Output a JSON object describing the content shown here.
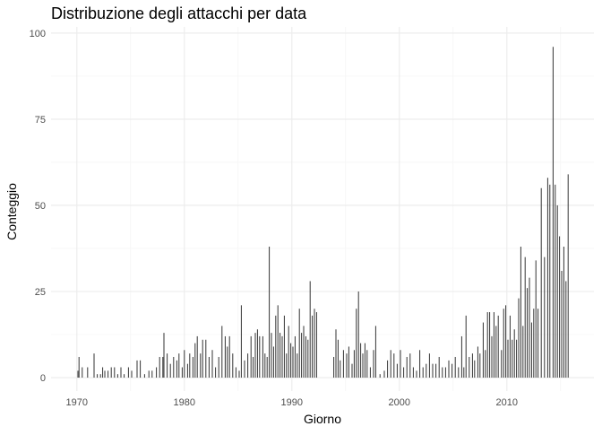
{
  "chart_data": {
    "type": "bar",
    "title": "Distribuzione degli attacchi per data",
    "x_label": "Giorno",
    "y_label": "Conteggio",
    "color": "#333333",
    "grid": true,
    "xlim": [
      1967.6,
      2018.1
    ],
    "ylim": [
      -3.9,
      101.8
    ],
    "xticks": [
      1970,
      1980,
      1990,
      2000,
      2010
    ],
    "yticks": [
      0,
      25,
      50,
      75,
      100
    ],
    "x_minor_ticks": [
      1975,
      1985,
      1995,
      2005,
      2015
    ],
    "y_minor_ticks": [
      12.5,
      37.5,
      62.5,
      87.5
    ],
    "x": [
      1970.1,
      1970.2,
      1970.5,
      1971,
      1971.6,
      1971.9,
      1972.2,
      1972.4,
      1972.6,
      1972.9,
      1973.2,
      1973.5,
      1973.8,
      1974.1,
      1974.4,
      1974.8,
      1975.1,
      1975.6,
      1975.9,
      1976.3,
      1976.7,
      1977,
      1977.4,
      1977.7,
      1978,
      1978.1,
      1978.4,
      1978.7,
      1979,
      1979.3,
      1979.5,
      1979.8,
      1980,
      1980.3,
      1980.5,
      1980.8,
      1981,
      1981.2,
      1981.5,
      1981.7,
      1982,
      1982.3,
      1982.6,
      1982.9,
      1983.2,
      1983.5,
      1983.8,
      1984,
      1984.2,
      1984.5,
      1984.8,
      1985.1,
      1985.3,
      1985.6,
      1985.9,
      1986.2,
      1986.4,
      1986.6,
      1986.8,
      1987,
      1987.3,
      1987.5,
      1987.7,
      1987.9,
      1988.1,
      1988.3,
      1988.5,
      1988.7,
      1988.9,
      1989.1,
      1989.3,
      1989.5,
      1989.7,
      1989.9,
      1990.1,
      1990.3,
      1990.5,
      1990.7,
      1990.9,
      1991.1,
      1991.3,
      1991.5,
      1991.7,
      1991.9,
      1992.1,
      1992.3,
      1993.9,
      1994.1,
      1994.3,
      1994.5,
      1994.8,
      1995.1,
      1995.3,
      1995.6,
      1995.8,
      1996,
      1996.2,
      1996.4,
      1996.6,
      1996.8,
      1997,
      1997.3,
      1997.6,
      1997.8,
      1998.2,
      1998.6,
      1998.9,
      1999.2,
      1999.5,
      1999.8,
      2000.1,
      2000.4,
      2000.7,
      2001,
      2001.3,
      2001.6,
      2001.9,
      2002.2,
      2002.5,
      2002.8,
      2003.1,
      2003.4,
      2003.7,
      2004,
      2004.3,
      2004.6,
      2004.9,
      2005.2,
      2005.5,
      2005.8,
      2006,
      2006.2,
      2006.5,
      2006.8,
      2007,
      2007.3,
      2007.5,
      2007.8,
      2008,
      2008.2,
      2008.4,
      2008.6,
      2008.8,
      2009,
      2009.2,
      2009.5,
      2009.7,
      2009.9,
      2010.1,
      2010.3,
      2010.5,
      2010.7,
      2010.9,
      2011.1,
      2011.3,
      2011.5,
      2011.7,
      2011.9,
      2012.1,
      2012.3,
      2012.5,
      2012.7,
      2012.9,
      2013.2,
      2013.5,
      2013.8,
      2014.0,
      2014.3,
      2014.5,
      2014.7,
      2014.9,
      2015.1,
      2015.3,
      2015.5,
      2015.7
    ],
    "values": [
      2,
      6,
      3,
      3,
      7,
      1,
      1,
      3,
      2,
      2,
      3,
      3,
      1,
      3,
      1,
      3,
      2,
      5,
      5,
      1,
      2,
      2,
      3,
      6,
      6,
      13,
      7,
      4,
      6,
      5,
      7,
      3,
      8,
      4,
      7,
      6,
      10,
      12,
      7,
      11,
      11,
      6,
      8,
      3,
      6,
      15,
      12,
      9,
      12,
      7,
      3,
      2,
      21,
      5,
      7,
      12,
      6,
      13,
      14,
      12,
      12,
      7,
      6,
      38,
      13,
      9,
      18,
      21,
      13,
      12,
      18,
      7,
      15,
      10,
      9,
      12,
      7,
      20,
      13,
      15,
      12,
      11,
      28,
      18,
      20,
      19,
      6,
      14,
      11,
      5,
      8,
      7,
      9,
      4,
      8,
      20,
      25,
      10,
      7,
      10,
      8,
      3,
      8,
      15,
      1,
      2,
      5,
      8,
      7,
      4,
      8,
      3,
      6,
      7,
      3,
      2,
      8,
      3,
      4,
      7,
      4,
      4,
      6,
      3,
      3,
      5,
      4,
      6,
      3,
      12,
      3,
      18,
      6,
      7,
      5,
      9,
      7,
      16,
      8,
      19,
      19,
      12,
      19,
      15,
      18,
      8,
      20,
      21,
      11,
      18,
      11,
      14,
      11,
      23,
      38,
      15,
      35,
      26,
      29,
      16,
      20,
      34,
      20,
      55,
      35,
      58,
      56,
      96,
      56,
      50,
      41,
      31,
      38,
      28,
      59
    ]
  }
}
